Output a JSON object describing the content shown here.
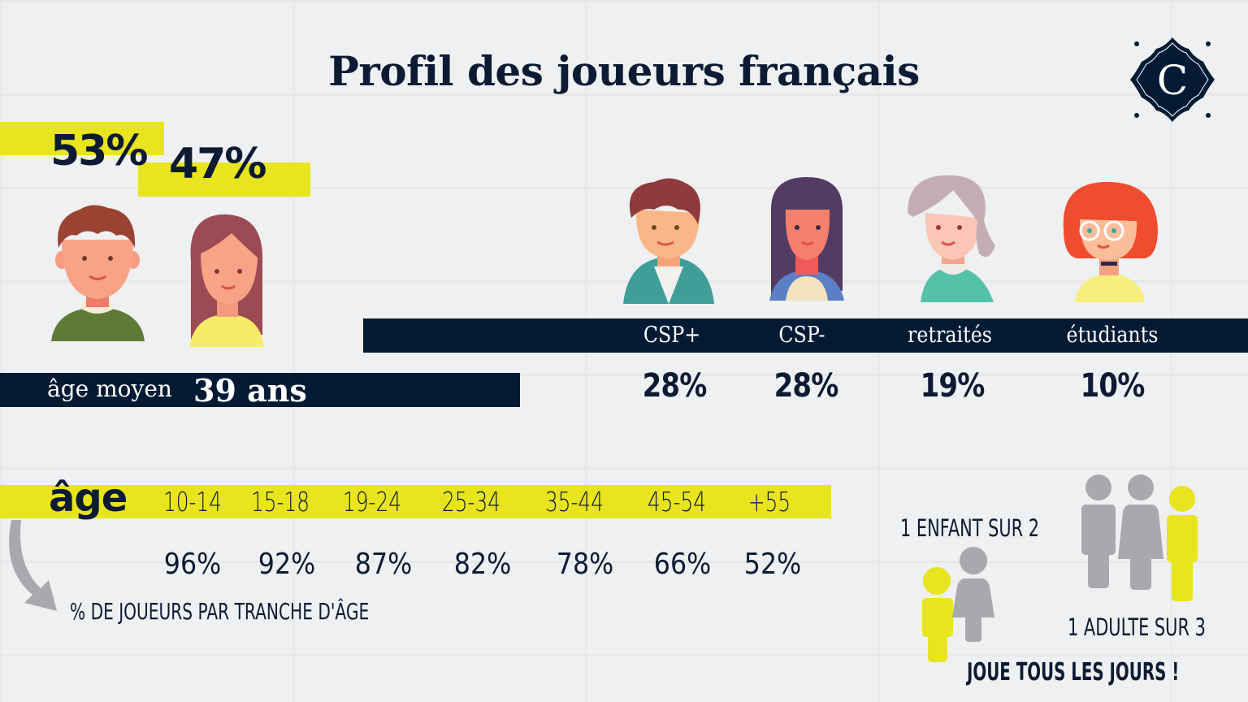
{
  "title": "Profil des joueurs français",
  "logo": {
    "letter": "C",
    "icon": "diamond-logo-icon"
  },
  "colors": {
    "navy": "#021a33",
    "yellow": "#e8e41e",
    "grey": "#a7a9ac",
    "background": "#eef0f1"
  },
  "gender": {
    "male_pct": "53%",
    "female_pct": "47%"
  },
  "average_age": {
    "label": "âge moyen",
    "value": "39 ans"
  },
  "socio": [
    {
      "label": "CSP+",
      "value": "28%"
    },
    {
      "label": "CSP-",
      "value": "28%"
    },
    {
      "label": "retraités",
      "value": "19%"
    },
    {
      "label": "étudiants",
      "value": "10%"
    }
  ],
  "age_table": {
    "heading": "âge",
    "ranges": [
      "10-14",
      "15-18",
      "19-24",
      "25-34",
      "35-44",
      "45-54",
      "+55"
    ],
    "values": [
      "96%",
      "92%",
      "87%",
      "82%",
      "78%",
      "66%",
      "52%"
    ],
    "caption": "% DE JOUEURS PAR TRANCHE D'ÂGE"
  },
  "daily": {
    "children": "1 ENFANT SUR 2",
    "adults": "1 ADULTE SUR 3",
    "footer": "JOUE TOUS LES JOURS !"
  }
}
